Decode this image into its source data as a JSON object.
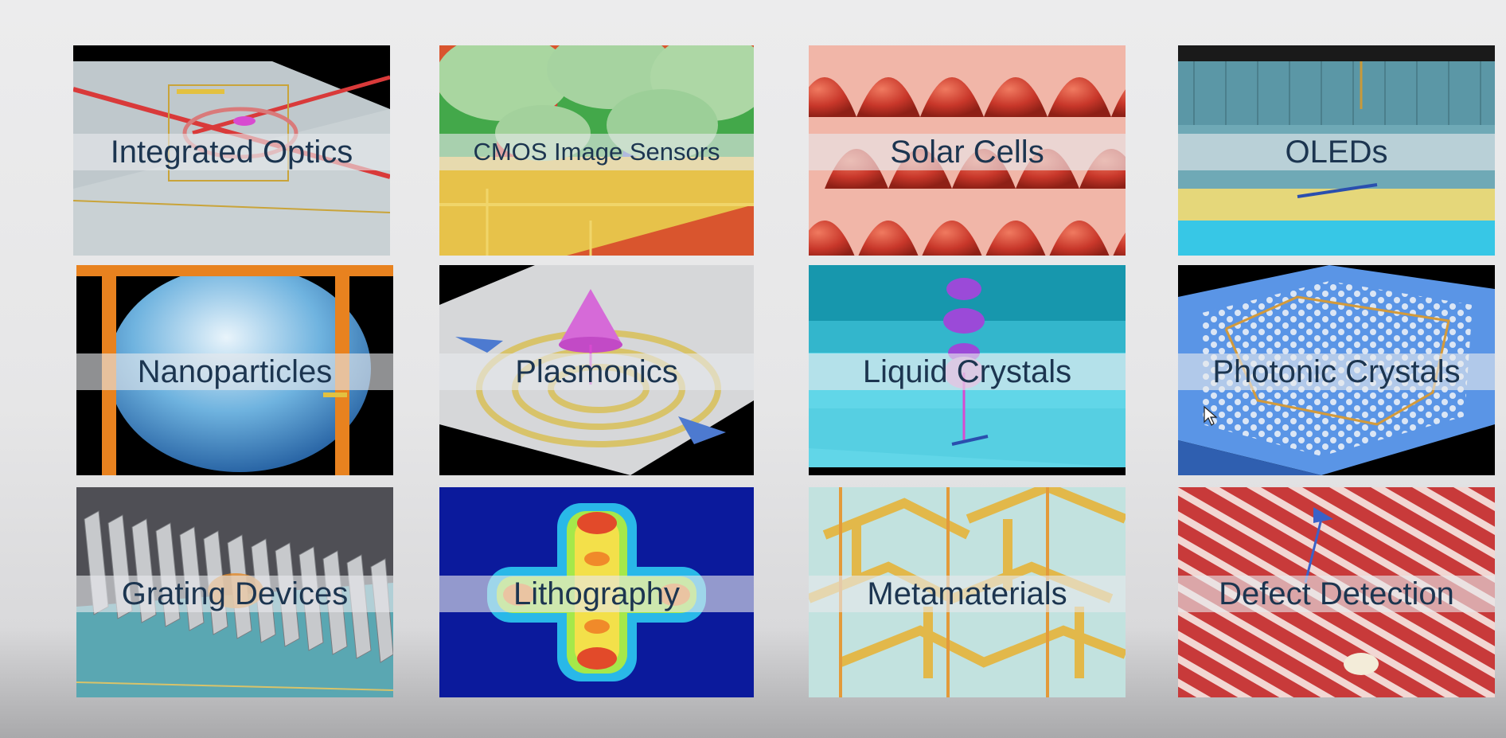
{
  "tiles": [
    {
      "id": "integrated-optics",
      "label": "Integrated Optics"
    },
    {
      "id": "cmos-image-sensors",
      "label": "CMOS Image Sensors"
    },
    {
      "id": "solar-cells",
      "label": "Solar Cells"
    },
    {
      "id": "oleds",
      "label": "OLEDs"
    },
    {
      "id": "nanoparticles",
      "label": "Nanoparticles"
    },
    {
      "id": "plasmonics",
      "label": "Plasmonics"
    },
    {
      "id": "liquid-crystals",
      "label": "Liquid Crystals"
    },
    {
      "id": "photonic-crystals",
      "label": "Photonic Crystals"
    },
    {
      "id": "grating-devices",
      "label": "Grating Devices"
    },
    {
      "id": "lithography",
      "label": "Lithography"
    },
    {
      "id": "metamaterials",
      "label": "Metamaterials"
    },
    {
      "id": "defect-detection",
      "label": "Defect Detection"
    }
  ],
  "colors": {
    "label_text": "#1c3550",
    "label_band": "#e6e8eb"
  }
}
